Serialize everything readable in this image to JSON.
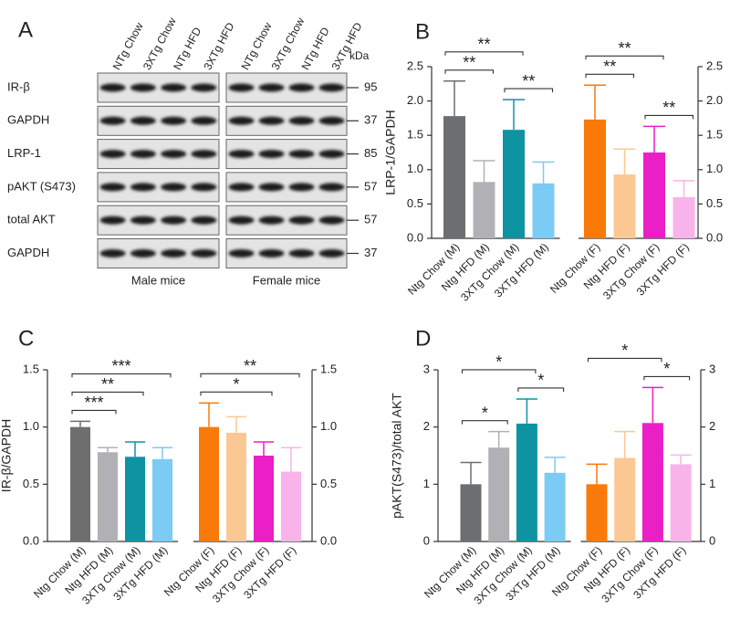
{
  "blot": {
    "panel": "A",
    "columns": [
      "NTg Chow",
      "3XTg Chow",
      "NTg HFD",
      "3XTg HFD",
      "NTg Chow",
      "3XTg Chow",
      "NTg HFD",
      "3XTg HFD"
    ],
    "unit": "kDa",
    "rows": [
      {
        "label": "IR-β",
        "kda": 95
      },
      {
        "label": "GAPDH",
        "kda": 37
      },
      {
        "label": "LRP-1",
        "kda": 85
      },
      {
        "label": "pAKT (S473)",
        "kda": 57
      },
      {
        "label": "total AKT",
        "kda": 57
      },
      {
        "label": "GAPDH",
        "kda": 37
      }
    ],
    "groups": [
      "Male mice",
      "Female mice"
    ]
  },
  "chart_data": [
    {
      "type": "bar",
      "panel": "B",
      "ylabel": "LRP-1/GAPDH",
      "categories": [
        "Ntg Chow (M)",
        "Ntg HFD (M)",
        "3XTg Chow (M)",
        "3XTg HFD (M)",
        "Ntg Chow (F)",
        "Ntg HFD (F)",
        "3XTg Chow (F)",
        "3XTg HFD (F)"
      ],
      "values": [
        1.78,
        0.82,
        1.58,
        0.8,
        1.73,
        0.93,
        1.25,
        0.6
      ],
      "errors": [
        0.51,
        0.31,
        0.44,
        0.31,
        0.5,
        0.37,
        0.38,
        0.24
      ],
      "colors": [
        "#6d6e70",
        "#b1b1b5",
        "#0e93a3",
        "#7ccbf4",
        "#f97a09",
        "#fbc894",
        "#ea1fc6",
        "#f8b4ea"
      ],
      "ylim": [
        0,
        2.5
      ],
      "yticks": [
        {
          "value": 0,
          "label": "0.0"
        },
        0.5,
        {
          "value": 1,
          "label": "1.0"
        },
        1.5,
        {
          "value": 2,
          "label": "2.0"
        },
        2.5
      ],
      "y2lim": [
        0,
        2.5
      ],
      "y2ticks": [
        {
          "value": 0,
          "label": "0.0"
        },
        0.5,
        {
          "value": 1,
          "label": "1.0"
        },
        1.5,
        {
          "value": 2,
          "label": "2.0"
        },
        2.5
      ],
      "annotations": [
        {
          "text": "**",
          "from": 0,
          "to": 1
        },
        {
          "text": "**",
          "from": 2,
          "to": 3
        },
        {
          "text": "**",
          "from": 0,
          "to": 2
        },
        {
          "text": "**",
          "from": 4,
          "to": 5
        },
        {
          "text": "**",
          "from": 6,
          "to": 7
        },
        {
          "text": "**",
          "from": 4,
          "to": 6
        }
      ]
    },
    {
      "type": "bar",
      "panel": "C",
      "ylabel": "IR-β/GAPDH",
      "categories": [
        "Ntg Chow (M)",
        "Ntg HFD (M)",
        "3XTg Chow (M)",
        "3XTg HFD (M)",
        "Ntg Chow (F)",
        "Ntg HFD (F)",
        "3XTg Chow (F)",
        "3XTg HFD (F)"
      ],
      "values": [
        1.0,
        0.78,
        0.74,
        0.72,
        1.0,
        0.95,
        0.75,
        0.61
      ],
      "errors": [
        0.05,
        0.04,
        0.13,
        0.1,
        0.21,
        0.14,
        0.12,
        0.21
      ],
      "colors": [
        "#6d6e70",
        "#b1b1b5",
        "#0e93a3",
        "#7ccbf4",
        "#f97a09",
        "#fbc894",
        "#ea1fc6",
        "#f8b4ea"
      ],
      "ylim": [
        0,
        1.5
      ],
      "yticks": [
        {
          "value": 0,
          "label": "0.0"
        },
        0.5,
        {
          "value": 1,
          "label": "1.0"
        },
        1.5
      ],
      "y2lim": [
        0,
        1.5
      ],
      "y2ticks": [
        {
          "value": 0,
          "label": "0.0"
        },
        0.5,
        {
          "value": 1,
          "label": "1.0"
        },
        1.5
      ],
      "annotations": [
        {
          "text": "***",
          "from": 0,
          "to": 1
        },
        {
          "text": "**",
          "from": 0,
          "to": 2
        },
        {
          "text": "***",
          "from": 0,
          "to": 3
        },
        {
          "text": "*",
          "from": 4,
          "to": 6
        },
        {
          "text": "**",
          "from": 4,
          "to": 7
        }
      ]
    },
    {
      "type": "bar",
      "panel": "D",
      "ylabel": "pAKT(S473)/total AKT",
      "categories": [
        "Ntg Chow (M)",
        "Ntg HFD (M)",
        "3XTg Chow (M)",
        "3XTg HFD (M)",
        "Ntg Chow (F)",
        "Ntg HFD (F)",
        "3XTg Chow (F)",
        "3XTg HFD (F)"
      ],
      "values": [
        1.0,
        1.64,
        2.06,
        1.2,
        1.0,
        1.46,
        2.07,
        1.35
      ],
      "errors": [
        0.38,
        0.28,
        0.43,
        0.27,
        0.35,
        0.46,
        0.62,
        0.16
      ],
      "colors": [
        "#6d6e70",
        "#b1b1b5",
        "#0e93a3",
        "#7ccbf4",
        "#f97a09",
        "#fbc894",
        "#ea1fc6",
        "#f8b4ea"
      ],
      "ylim": [
        0,
        3
      ],
      "yticks": [
        0,
        1,
        2,
        3
      ],
      "y2lim": [
        0,
        3
      ],
      "y2ticks": [
        0,
        1,
        2,
        3
      ],
      "annotations": [
        {
          "text": "*",
          "from": 0,
          "to": 1
        },
        {
          "text": "*",
          "from": 2,
          "to": 3
        },
        {
          "text": "*",
          "from": 0,
          "to": 2
        },
        {
          "text": "*",
          "from": 6,
          "to": 7
        },
        {
          "text": "*",
          "from": 4,
          "to": 6
        }
      ]
    }
  ]
}
